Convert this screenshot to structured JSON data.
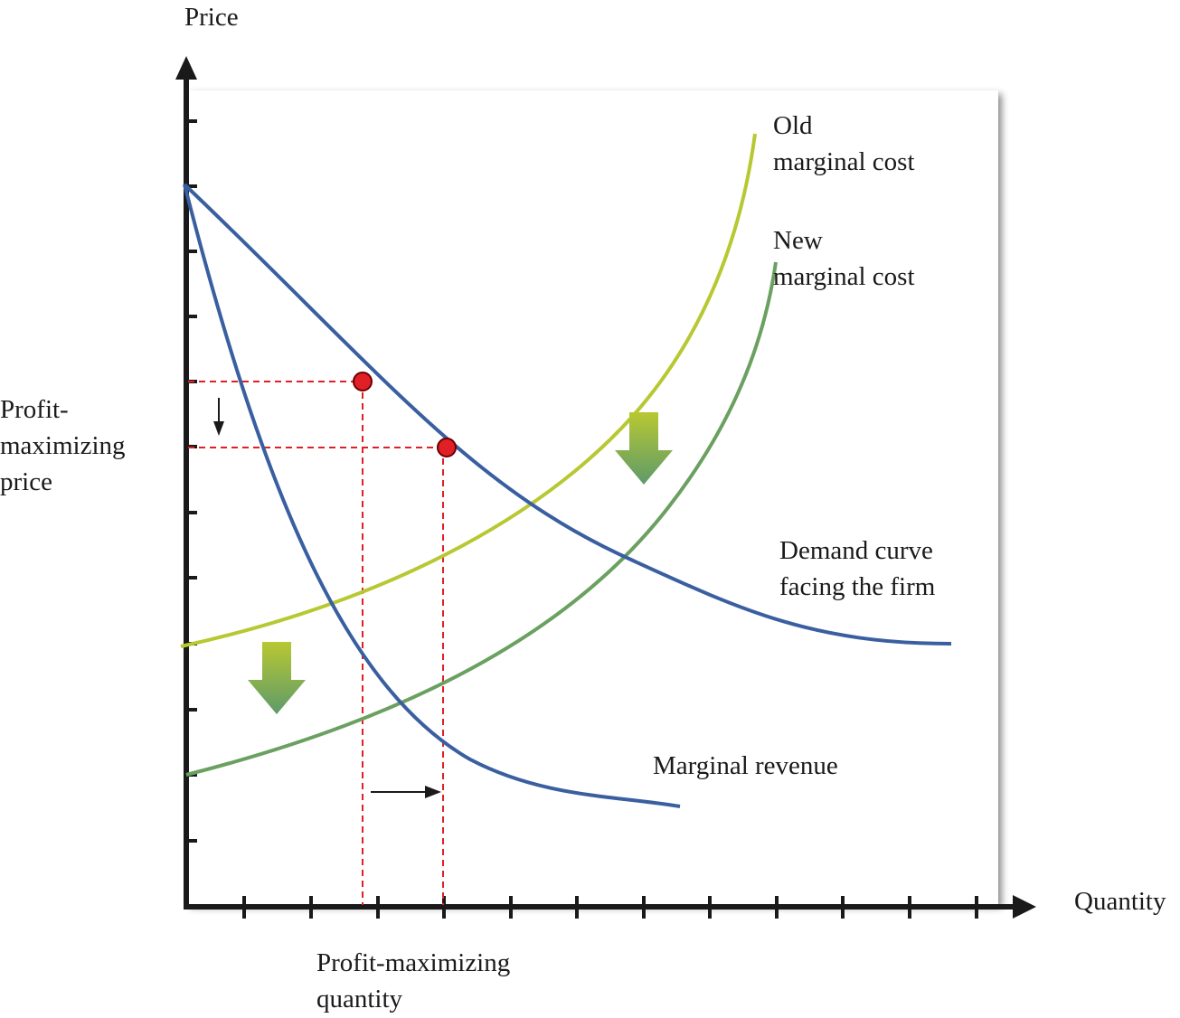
{
  "axes": {
    "y_label": "Price",
    "x_label": "Quantity"
  },
  "labels": {
    "price_line1": "Profit-",
    "price_line2": "maximizing",
    "price_line3": "price",
    "quantity_line1": "Profit-maximizing",
    "quantity_line2": "quantity",
    "old_mc_line1": "Old",
    "old_mc_line2": "marginal cost",
    "new_mc_line1": "New",
    "new_mc_line2": "marginal cost",
    "demand_line1": "Demand curve",
    "demand_line2": "facing the firm",
    "mr": "Marginal revenue"
  },
  "colors": {
    "demand": "#3a5fa0",
    "marginal_revenue": "#3a5fa0",
    "old_marginal_cost": "#b8c832",
    "new_marginal_cost": "#6aa060",
    "equilibrium_point": "#e01f26",
    "guide_lines": "#e01f26",
    "axis": "#1a1a1a"
  }
}
